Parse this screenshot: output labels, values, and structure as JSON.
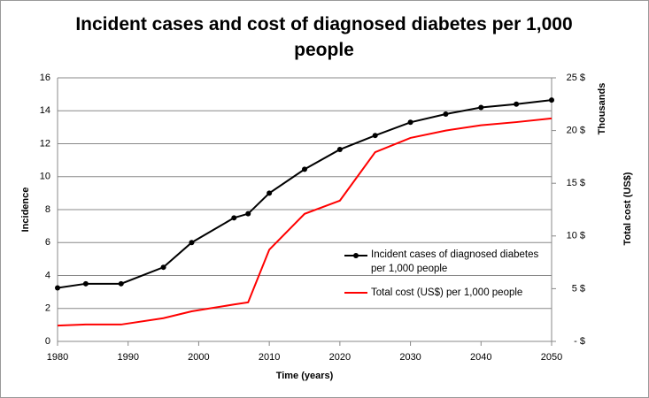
{
  "chart_data": {
    "type": "line",
    "title": "Incident cases and cost of diagnosed diabetes per 1,000 people",
    "x_label": "Time (years)",
    "y_label": "Incidence",
    "y2_label": "Total cost (US$)",
    "y2_unit_label": "Thousands",
    "x": [
      1980,
      1984,
      1989,
      1995,
      1999,
      2005,
      2007,
      2010,
      2015,
      2020,
      2025,
      2030,
      2035,
      2040,
      2045,
      2050
    ],
    "series": [
      {
        "name": "Incident cases of diagnosed diabetes per 1,000 people",
        "color": "#000000",
        "markers": true,
        "values": [
          3.25,
          3.5,
          3.5,
          4.5,
          6.0,
          7.5,
          7.75,
          9.0,
          10.45,
          11.65,
          12.5,
          13.3,
          13.8,
          14.2,
          14.4,
          14.65
        ]
      },
      {
        "name": "Total cost (US$) per 1,000 people",
        "color": "#ff0000",
        "markers": false,
        "axis": "y2",
        "values": [
          1.5,
          1.6,
          1.6,
          2.2,
          2.85,
          3.5,
          3.7,
          8.7,
          12.1,
          13.35,
          17.95,
          19.3,
          20.0,
          20.5,
          20.8,
          21.15
        ]
      }
    ],
    "xlim": [
      1980,
      2050
    ],
    "xticks": [
      1980,
      1990,
      2000,
      2010,
      2020,
      2030,
      2040,
      2050
    ],
    "ylim": [
      0,
      16
    ],
    "yticks": [
      0,
      2,
      4,
      6,
      8,
      10,
      12,
      14,
      16
    ],
    "y2lim": [
      0,
      25
    ],
    "y2ticks": [
      {
        "value": 0,
        "label": "- $"
      },
      {
        "value": 5,
        "label": "5 $"
      },
      {
        "value": 10,
        "label": "10 $"
      },
      {
        "value": 15,
        "label": "15 $"
      },
      {
        "value": 20,
        "label": "20 $"
      },
      {
        "value": 25,
        "label": "25 $"
      }
    ],
    "grid": true
  }
}
